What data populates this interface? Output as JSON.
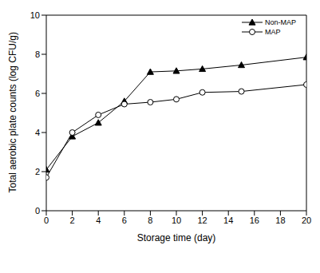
{
  "chart_data": {
    "type": "line",
    "x": [
      0,
      2,
      4,
      6,
      8,
      10,
      12,
      15,
      20
    ],
    "series": [
      {
        "name": "Non-MAP",
        "color": "#000000",
        "marker": "triangle",
        "values": [
          2.1,
          3.8,
          4.5,
          5.6,
          7.1,
          7.15,
          7.25,
          7.45,
          7.85
        ]
      },
      {
        "name": "MAP",
        "color": "#000000",
        "marker": "circle",
        "values": [
          1.7,
          4.0,
          4.9,
          5.45,
          5.55,
          5.7,
          6.05,
          6.1,
          6.45
        ]
      }
    ],
    "xlabel": "Storage time (day)",
    "ylabel": "Total aerobic plate counts (log CFU/g)",
    "xlim": [
      0,
      20
    ],
    "xticks": [
      0,
      2,
      4,
      6,
      8,
      10,
      12,
      14,
      16,
      18,
      20
    ],
    "ylim": [
      0,
      10
    ],
    "yticks": [
      0,
      2,
      4,
      6,
      8,
      10
    ],
    "legend": "upper right"
  }
}
